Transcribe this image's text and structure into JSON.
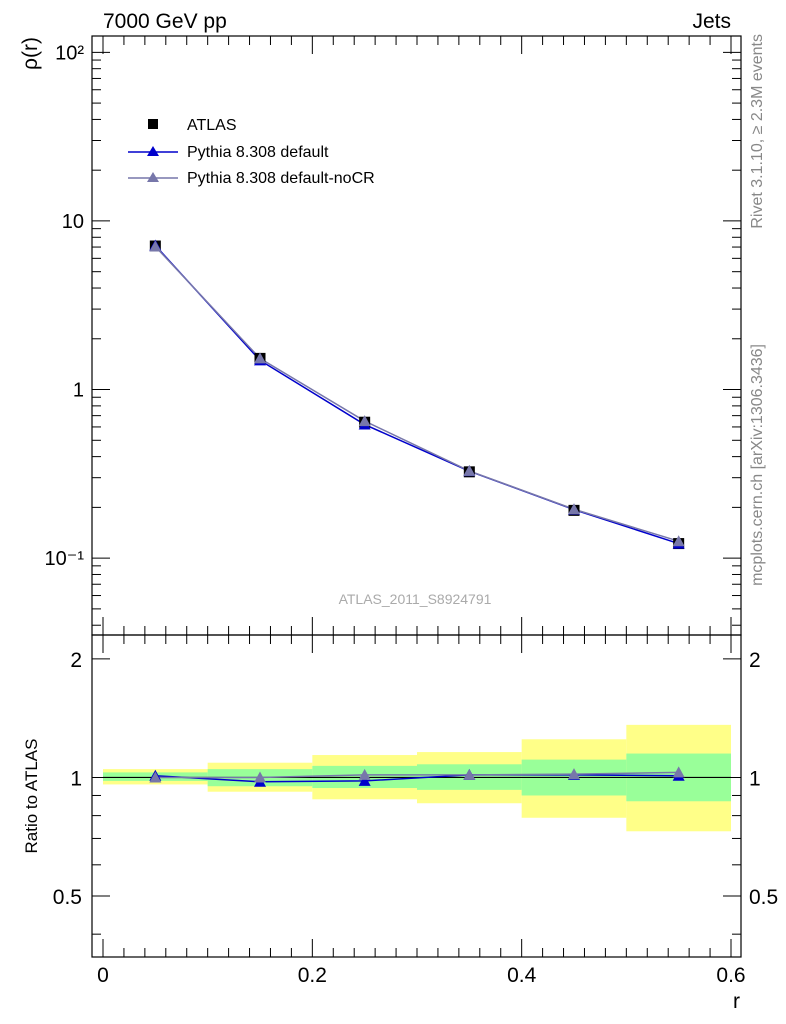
{
  "header": {
    "left": "7000 GeV pp",
    "right": "Jets"
  },
  "side_text": {
    "top": "Rivet 3.1.10, ≥ 2.3M events",
    "bottom": "mcplots.cern.ch [arXiv:1306.3436]"
  },
  "analysis_label": "ATLAS_2011_S8924791",
  "colors": {
    "atlas": "#000000",
    "default": "#0000cc",
    "nocr": "#7777aa",
    "band_outer": "#ffff88",
    "band_inner": "#99ff99"
  },
  "chart_data": [
    {
      "type": "line",
      "panel": "main",
      "ylabel": "ρ(r)",
      "xlim": [
        0,
        0.6
      ],
      "ylim": [
        0.035,
        125
      ],
      "yscale": "log",
      "ytick_labels": [
        "10⁻¹",
        "1",
        "10",
        "10²"
      ],
      "ytick_values": [
        0.1,
        1,
        10,
        100
      ],
      "legend_position": "top-left",
      "x": [
        0.05,
        0.15,
        0.25,
        0.35,
        0.45,
        0.55
      ],
      "series": [
        {
          "name": "ATLAS",
          "marker": "square",
          "values": [
            7.1,
            1.53,
            0.64,
            0.325,
            0.192,
            0.122
          ]
        },
        {
          "name": "Pythia 8.308 default",
          "marker": "triangle",
          "values": [
            7.15,
            1.49,
            0.62,
            0.328,
            0.194,
            0.122
          ]
        },
        {
          "name": "Pythia 8.308 default-noCR",
          "marker": "triangle",
          "values": [
            7.05,
            1.53,
            0.65,
            0.329,
            0.195,
            0.126
          ]
        }
      ]
    },
    {
      "type": "line",
      "panel": "ratio",
      "xlabel": "r",
      "ylabel": "Ratio to ATLAS",
      "xlim": [
        0,
        0.6
      ],
      "ylim": [
        0.35,
        2.3
      ],
      "xtick_labels": [
        "0",
        "0.2",
        "0.4",
        "0.6"
      ],
      "xtick_values": [
        0,
        0.2,
        0.4,
        0.6
      ],
      "ytick_labels": [
        "0.5",
        "1",
        "2"
      ],
      "ytick_values": [
        0.5,
        1,
        2
      ],
      "bins": [
        [
          0,
          0.1
        ],
        [
          0.1,
          0.2
        ],
        [
          0.2,
          0.3
        ],
        [
          0.3,
          0.4
        ],
        [
          0.4,
          0.5
        ],
        [
          0.5,
          0.6
        ]
      ],
      "band_stat": [
        [
          0.98,
          1.03
        ],
        [
          0.95,
          1.05
        ],
        [
          0.94,
          1.07
        ],
        [
          0.93,
          1.08
        ],
        [
          0.9,
          1.11
        ],
        [
          0.87,
          1.15
        ]
      ],
      "band_total": [
        [
          0.96,
          1.05
        ],
        [
          0.92,
          1.09
        ],
        [
          0.88,
          1.14
        ],
        [
          0.86,
          1.16
        ],
        [
          0.79,
          1.25
        ],
        [
          0.73,
          1.36
        ]
      ],
      "x": [
        0.05,
        0.15,
        0.25,
        0.35,
        0.45,
        0.55
      ],
      "series": [
        {
          "name": "Pythia 8.308 default",
          "values": [
            1.01,
            0.975,
            0.98,
            1.015,
            1.015,
            1.01
          ]
        },
        {
          "name": "Pythia 8.308 default-noCR",
          "values": [
            1.0,
            1.0,
            1.015,
            1.015,
            1.02,
            1.03
          ]
        }
      ]
    }
  ]
}
